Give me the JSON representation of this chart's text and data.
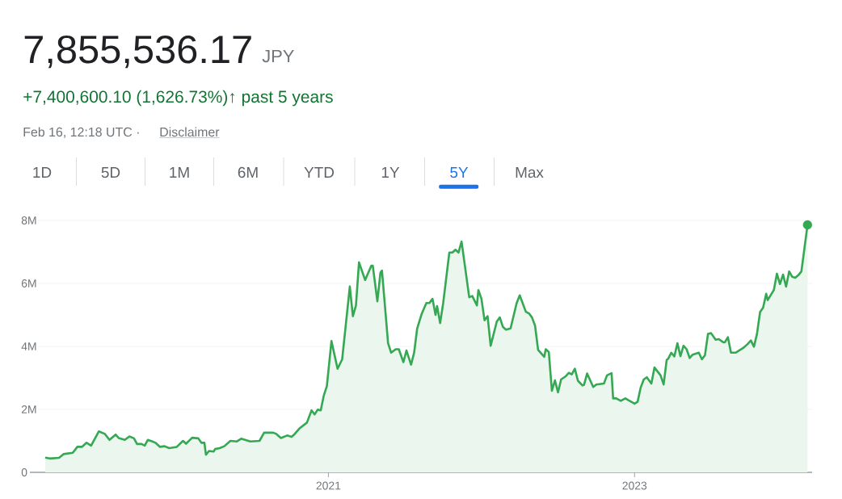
{
  "chart_data": {
    "type": "area",
    "title": "7,855,536.17",
    "subtitle": "+7,400,600.10 (1,626.73%)↑ past 5 years",
    "annotations": [
      "JPY",
      "Feb 16, 12:18 UTC ·",
      "Disclaimer",
      "1D",
      "5D",
      "1M",
      "6M",
      "YTD",
      "1Y",
      "5Y",
      "Max"
    ],
    "x": [
      2019.15,
      2019.18,
      2019.24,
      2019.27,
      2019.33,
      2019.36,
      2019.39,
      2019.42,
      2019.45,
      2019.5,
      2019.54,
      2019.57,
      2019.61,
      2019.63,
      2019.67,
      2019.7,
      2019.73,
      2019.75,
      2019.78,
      2019.8,
      2019.82,
      2019.85,
      2019.87,
      2019.9,
      2019.93,
      2019.96,
      2020.01,
      2020.05,
      2020.07,
      2020.11,
      2020.15,
      2020.17,
      2020.19,
      2020.2,
      2020.22,
      2020.25,
      2020.26,
      2020.29,
      2020.32,
      2020.36,
      2020.4,
      2020.43,
      2020.49,
      2020.55,
      2020.58,
      2020.64,
      2020.66,
      2020.69,
      2020.73,
      2020.76,
      2020.78,
      2020.81,
      2020.86,
      2020.89,
      2020.91,
      2020.93,
      2020.95,
      2020.97,
      2020.99,
      2021.02,
      2021.06,
      2021.09,
      2021.14,
      2021.16,
      2021.18,
      2021.2,
      2021.24,
      2021.28,
      2021.29,
      2021.32,
      2021.34,
      2021.35,
      2021.39,
      2021.41,
      2021.44,
      2021.46,
      2021.49,
      2021.51,
      2021.54,
      2021.56,
      2021.58,
      2021.61,
      2021.64,
      2021.66,
      2021.68,
      2021.7,
      2021.71,
      2021.73,
      2021.75,
      2021.79,
      2021.81,
      2021.83,
      2021.85,
      2021.87,
      2021.92,
      2021.94,
      2021.97,
      2021.98,
      2022.0,
      2022.02,
      2022.04,
      2022.06,
      2022.1,
      2022.12,
      2022.14,
      2022.16,
      2022.19,
      2022.23,
      2022.25,
      2022.29,
      2022.31,
      2022.33,
      2022.35,
      2022.37,
      2022.41,
      2022.42,
      2022.44,
      2022.46,
      2022.48,
      2022.5,
      2022.52,
      2022.55,
      2022.57,
      2022.59,
      2022.61,
      2022.63,
      2022.66,
      2022.67,
      2022.69,
      2022.73,
      2022.75,
      2022.8,
      2022.82,
      2022.85,
      2022.86,
      2022.88,
      2022.91,
      2022.94,
      2022.96,
      2023.0,
      2023.02,
      2023.04,
      2023.06,
      2023.08,
      2023.11,
      2023.13,
      2023.17,
      2023.19,
      2023.21,
      2023.22,
      2023.24,
      2023.26,
      2023.28,
      2023.3,
      2023.32,
      2023.34,
      2023.36,
      2023.38,
      2023.42,
      2023.44,
      2023.46,
      2023.48,
      2023.5,
      2023.53,
      2023.55,
      2023.58,
      2023.59,
      2023.61,
      2023.63,
      2023.66,
      2023.71,
      2023.74,
      2023.76,
      2023.78,
      2023.8,
      2023.82,
      2023.84,
      2023.86,
      2023.87,
      2023.91,
      2023.93,
      2023.95,
      2023.97,
      2023.99,
      2024.01,
      2024.03,
      2024.05,
      2024.07,
      2024.09,
      2024.13
    ],
    "series": [
      {
        "color": "#34a853",
        "values": [
          0.47,
          0.44,
          0.46,
          0.58,
          0.62,
          0.81,
          0.81,
          0.94,
          0.85,
          1.3,
          1.22,
          1.03,
          1.2,
          1.09,
          1.03,
          1.14,
          1.08,
          0.9,
          0.9,
          0.85,
          1.03,
          0.98,
          0.94,
          0.81,
          0.83,
          0.77,
          0.81,
          1.0,
          0.91,
          1.1,
          1.08,
          0.94,
          0.94,
          0.56,
          0.68,
          0.66,
          0.74,
          0.77,
          0.83,
          1.0,
          0.98,
          1.07,
          0.98,
          1.0,
          1.26,
          1.26,
          1.22,
          1.09,
          1.17,
          1.13,
          1.22,
          1.39,
          1.58,
          1.97,
          1.84,
          1.99,
          1.97,
          2.44,
          2.74,
          4.17,
          3.29,
          3.59,
          5.9,
          4.96,
          5.3,
          6.67,
          6.11,
          6.56,
          6.56,
          5.43,
          6.34,
          6.41,
          4.1,
          3.8,
          3.91,
          3.91,
          3.5,
          3.87,
          3.42,
          3.8,
          4.57,
          5.04,
          5.38,
          5.38,
          5.51,
          5.0,
          5.28,
          4.74,
          5.38,
          6.98,
          6.98,
          7.07,
          6.98,
          7.33,
          5.56,
          5.6,
          5.3,
          5.79,
          5.51,
          4.83,
          4.96,
          4.02,
          4.79,
          4.92,
          4.62,
          4.53,
          4.57,
          5.38,
          5.62,
          5.1,
          5.05,
          4.92,
          4.66,
          3.89,
          3.67,
          3.91,
          3.82,
          2.59,
          2.92,
          2.54,
          2.95,
          3.05,
          3.16,
          3.11,
          3.29,
          2.91,
          2.76,
          2.78,
          3.14,
          2.71,
          2.79,
          2.82,
          3.08,
          3.15,
          2.35,
          2.35,
          2.27,
          2.35,
          2.29,
          2.18,
          2.24,
          2.69,
          2.95,
          3.02,
          2.82,
          3.33,
          3.08,
          2.79,
          3.57,
          3.61,
          3.8,
          3.68,
          4.1,
          3.69,
          4.02,
          3.91,
          3.63,
          3.74,
          3.8,
          3.59,
          3.72,
          4.4,
          4.42,
          4.21,
          4.23,
          4.13,
          4.13,
          4.29,
          3.8,
          3.8,
          3.95,
          4.08,
          4.19,
          3.99,
          4.4,
          5.09,
          5.23,
          5.67,
          5.47,
          5.79,
          6.31,
          5.98,
          6.28,
          5.9,
          6.38,
          6.21,
          6.18,
          6.26,
          6.38,
          7.86
        ]
      },
      {
        "type": "scatter",
        "marker": "circle",
        "color": "#34a853",
        "x": [
          2024.13
        ],
        "values": [
          7.86
        ]
      }
    ],
    "xlim": [
      2019.05,
      2024.16
    ],
    "xticks": [
      2021,
      2023
    ],
    "ylim": [
      0,
      8
    ],
    "yticks": [
      0,
      {
        "value": 2,
        "label": "2M"
      },
      {
        "value": 4,
        "label": "4M"
      },
      {
        "value": 6,
        "label": "6M"
      },
      {
        "value": 8,
        "label": "8M"
      }
    ],
    "grid": "y"
  }
}
